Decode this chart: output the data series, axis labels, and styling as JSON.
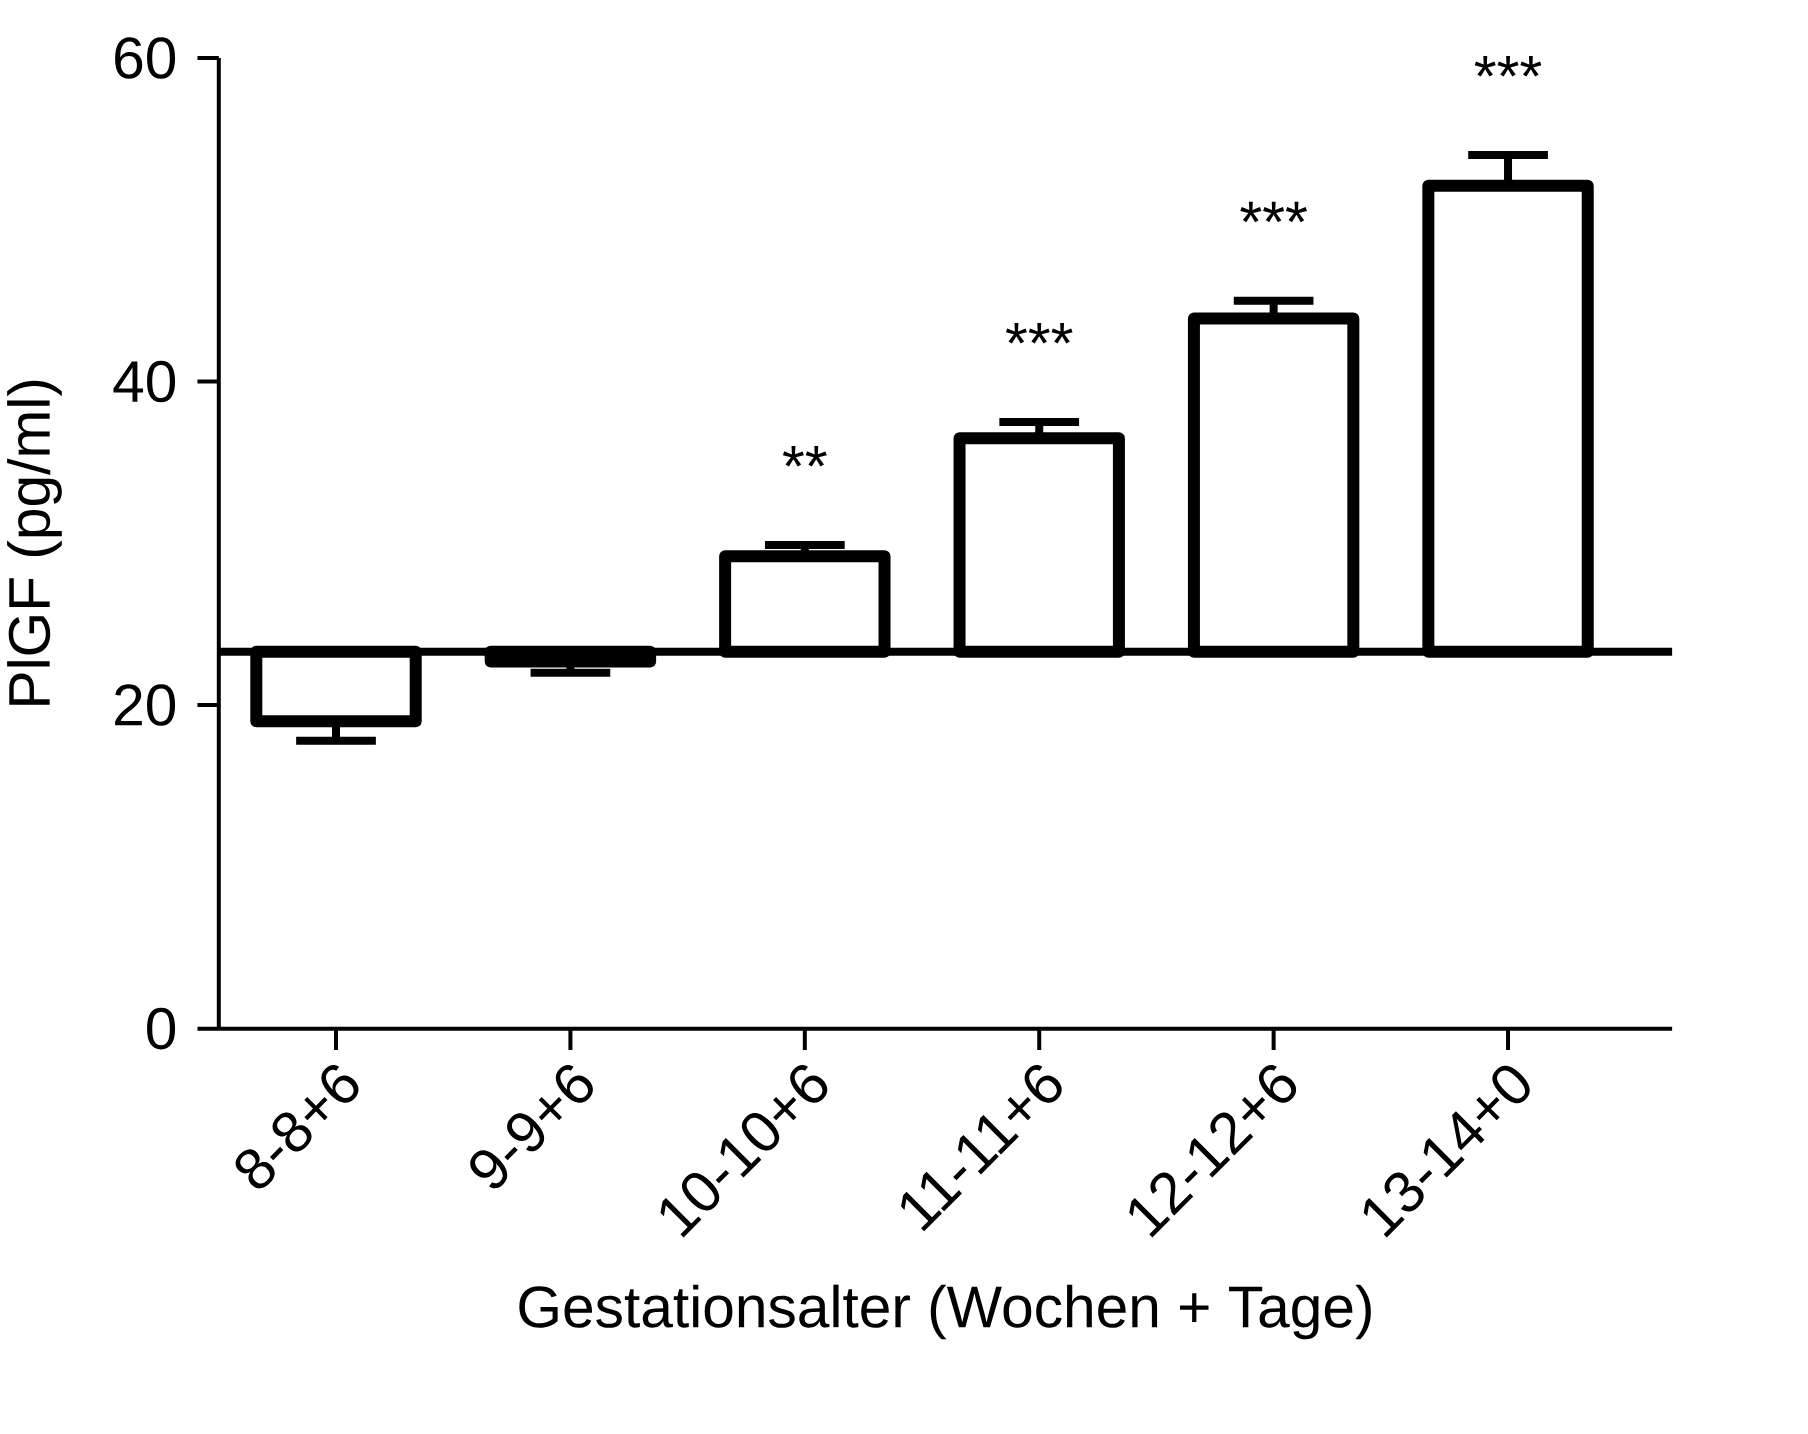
{
  "chart_data": {
    "type": "bar",
    "xlabel": "Gestationsalter (Wochen + Tage)",
    "ylabel": "PlGF (pg/ml)",
    "categories": [
      "8-8+6",
      "9-9+6",
      "10-10+6",
      "11-11+6",
      "12-12+6",
      "13-14+0"
    ],
    "values": [
      -4.3,
      -0.6,
      5.9,
      13.2,
      20.6,
      28.8
    ],
    "base": [
      23.3,
      23.3,
      23.3,
      23.3,
      23.3,
      23.3
    ],
    "errors": [
      [
        17.8,
        19.0
      ],
      [
        22.0,
        22.7
      ],
      [
        29.2,
        29.9
      ],
      [
        36.5,
        37.5
      ],
      [
        43.9,
        45.0
      ],
      [
        52.1,
        54.0
      ]
    ],
    "color": "#ffffff",
    "ylim": [
      0,
      60
    ],
    "yticks": [
      0,
      20,
      40,
      60
    ],
    "ref_lines": [
      {
        "axis": "y",
        "value": 23.3,
        "color": "#000000"
      }
    ],
    "annotations": [
      "**",
      "***",
      "***",
      "***"
    ],
    "grid": false
  }
}
